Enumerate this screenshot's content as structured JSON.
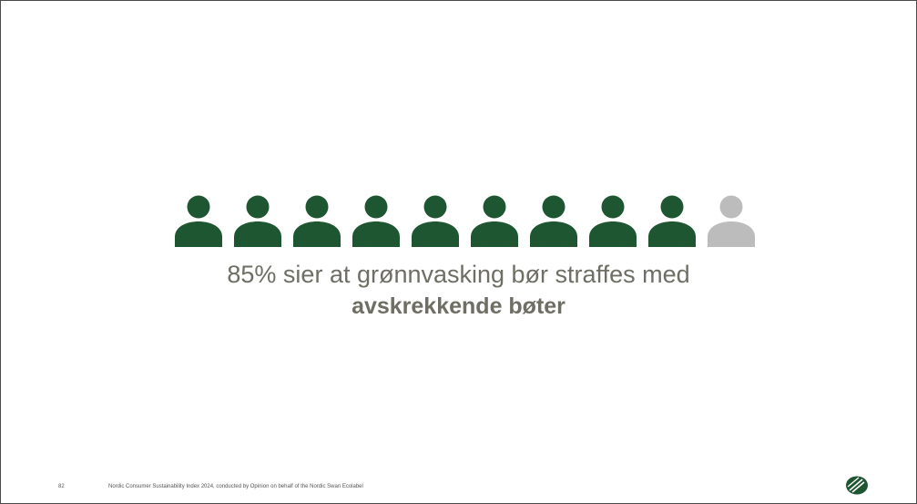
{
  "infographic": {
    "filled_count": 9,
    "total_count": 10,
    "filled_color": "#1e5631",
    "empty_color": "#bcbcbc",
    "icon": "person-icon"
  },
  "headline": {
    "line1": "85% sier at grønnvasking bør straffes med",
    "line2": "avskrekkende bøter"
  },
  "footer": {
    "page_number": "82",
    "source": "Nordic Consumer Sustainability Index 2024, conducted by Opinion on behalf of the Nordic Swan Ecolabel"
  },
  "logo": {
    "icon": "nordic-swan-logo-icon",
    "color": "#1e5631"
  }
}
